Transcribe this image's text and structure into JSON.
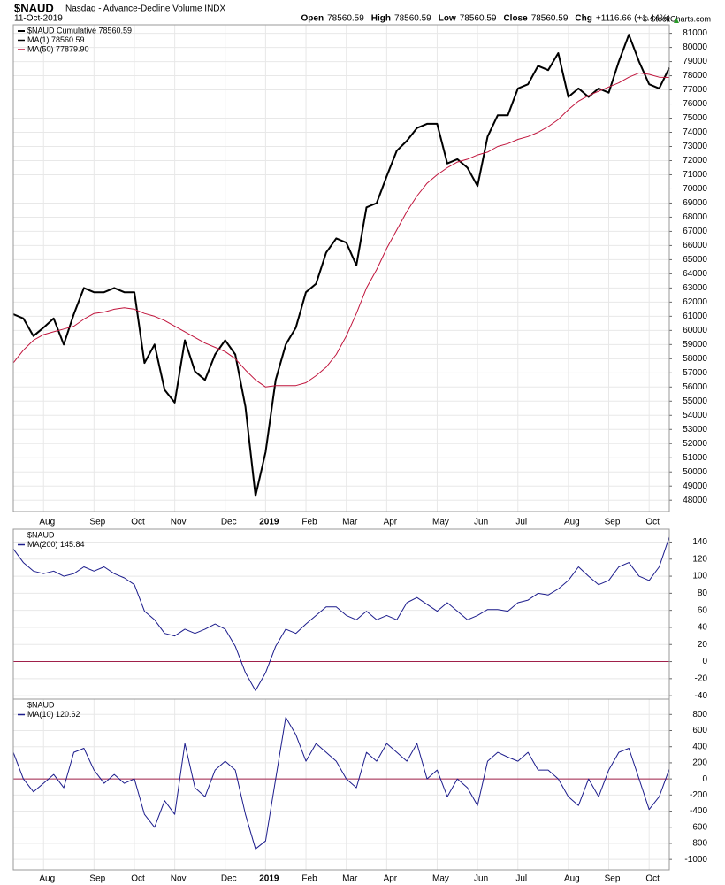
{
  "header": {
    "symbol": "$NAUD",
    "name": "Nasdaq - Advance-Decline Volume INDX",
    "date": "11-Oct-2019",
    "quote": [
      {
        "label": "Open",
        "value": "78560.59"
      },
      {
        "label": "High",
        "value": "78560.59"
      },
      {
        "label": "Low",
        "value": "78560.59"
      },
      {
        "label": "Close",
        "value": "78560.59"
      },
      {
        "label": "Chg",
        "value": "+1116.66 (+1.44%)"
      }
    ],
    "credit": "© StockCharts.com"
  },
  "chart_data": [
    {
      "type": "line",
      "legend_title": "$NAUD Cumulative 78560.59",
      "categories": [
        null,
        null,
        null,
        "Aug",
        null,
        null,
        null,
        null,
        "Sep",
        null,
        null,
        null,
        "Oct",
        null,
        null,
        null,
        "Nov",
        null,
        null,
        null,
        null,
        "Dec",
        null,
        null,
        null,
        "2019",
        null,
        null,
        null,
        "Feb",
        null,
        null,
        null,
        "Mar",
        null,
        null,
        null,
        "Apr",
        null,
        null,
        null,
        null,
        "May",
        null,
        null,
        null,
        "Jun",
        null,
        null,
        null,
        "Jul",
        null,
        null,
        null,
        null,
        "Aug",
        null,
        null,
        null,
        "Sep",
        null,
        null,
        null,
        "Oct",
        null,
        null
      ],
      "series": [
        {
          "name": "MA(1) 78560.59",
          "color": "#000000",
          "width": 2,
          "values": [
            61150,
            60850,
            59600,
            60200,
            60850,
            59000,
            61150,
            63000,
            62700,
            62700,
            63000,
            62700,
            62700,
            57700,
            59000,
            55800,
            54900,
            59300,
            57100,
            56500,
            58300,
            59300,
            58300,
            54600,
            48300,
            51400,
            56500,
            59000,
            60200,
            62700,
            63300,
            65500,
            66500,
            66200,
            64600,
            68700,
            69000,
            70900,
            72700,
            73400,
            74300,
            74600,
            74600,
            71800,
            72100,
            71500,
            70200,
            73700,
            75200,
            75200,
            77100,
            77400,
            78700,
            78400,
            79600,
            76500,
            77100,
            76500,
            77100,
            76800,
            79000,
            80900,
            79000,
            77400,
            77100,
            78560.59
          ]
        },
        {
          "name": "MA(50) 77879.90",
          "color": "#c0143c",
          "width": 1,
          "values": [
            57700,
            58600,
            59300,
            59700,
            59900,
            60100,
            60300,
            60800,
            61200,
            61300,
            61500,
            61600,
            61500,
            61200,
            61000,
            60700,
            60300,
            59900,
            59500,
            59100,
            58800,
            58500,
            58000,
            57200,
            56500,
            56000,
            56100,
            56100,
            56100,
            56300,
            56800,
            57400,
            58300,
            59600,
            61200,
            63000,
            64300,
            65800,
            67100,
            68400,
            69500,
            70400,
            71000,
            71500,
            71900,
            72100,
            72400,
            72600,
            73000,
            73200,
            73500,
            73700,
            74000,
            74400,
            74900,
            75600,
            76200,
            76600,
            76900,
            77200,
            77500,
            77900,
            78200,
            78100,
            77900,
            77879.9
          ]
        }
      ],
      "ylim": [
        47200,
        81600
      ],
      "yticks": [
        48000,
        49000,
        50000,
        51000,
        52000,
        53000,
        54000,
        55000,
        56000,
        57000,
        58000,
        59000,
        60000,
        61000,
        62000,
        63000,
        64000,
        65000,
        66000,
        67000,
        68000,
        69000,
        70000,
        71000,
        72000,
        73000,
        74000,
        75000,
        76000,
        77000,
        78000,
        79000,
        80000,
        81000
      ],
      "grid": true
    },
    {
      "type": "line",
      "legend_title": "$NAUD",
      "series": [
        {
          "name": "MA(200) 145.84",
          "color": "#1c1c8c",
          "width": 1,
          "values": [
            132,
            116,
            106,
            103,
            106,
            100,
            103,
            111,
            106,
            111,
            103,
            98,
            90,
            59,
            49,
            33,
            30,
            38,
            33,
            38,
            44,
            38,
            18,
            -13,
            -34,
            -13,
            18,
            38,
            33,
            44,
            54,
            64,
            64,
            54,
            49,
            59,
            49,
            54,
            49,
            69,
            75,
            67,
            59,
            69,
            59,
            49,
            54,
            61,
            61,
            59,
            69,
            72,
            80,
            78,
            85,
            95,
            111,
            100,
            90,
            95,
            111,
            116,
            100,
            95,
            111,
            145.84
          ]
        }
      ],
      "reference_line": 0,
      "reference_color": "#a0204a",
      "ylim": [
        -44,
        155
      ],
      "yticks": [
        -40,
        -20,
        0,
        20,
        40,
        60,
        80,
        100,
        120,
        140
      ],
      "grid": true
    },
    {
      "type": "line",
      "legend_title": "$NAUD",
      "categories": [
        null,
        null,
        null,
        "Aug",
        null,
        null,
        null,
        null,
        "Sep",
        null,
        null,
        null,
        "Oct",
        null,
        null,
        null,
        "Nov",
        null,
        null,
        null,
        null,
        "Dec",
        null,
        null,
        null,
        "2019",
        null,
        null,
        null,
        "Feb",
        null,
        null,
        null,
        "Mar",
        null,
        null,
        null,
        "Apr",
        null,
        null,
        null,
        null,
        "May",
        null,
        null,
        null,
        "Jun",
        null,
        null,
        null,
        "Jul",
        null,
        null,
        null,
        null,
        "Aug",
        null,
        null,
        null,
        "Sep",
        null,
        null,
        null,
        "Oct",
        null,
        null
      ],
      "series": [
        {
          "name": "MA(10) 120.62",
          "color": "#1c1c8c",
          "width": 1,
          "values": [
            330,
            0,
            -160,
            -55,
            55,
            -110,
            330,
            380,
            110,
            -55,
            55,
            -55,
            0,
            -440,
            -600,
            -270,
            -440,
            440,
            -110,
            -220,
            110,
            220,
            110,
            -440,
            -870,
            -770,
            0,
            765,
            550,
            220,
            440,
            330,
            220,
            0,
            -110,
            330,
            220,
            440,
            330,
            220,
            440,
            0,
            110,
            -220,
            0,
            -110,
            -330,
            220,
            330,
            270,
            220,
            330,
            110,
            110,
            0,
            -220,
            -330,
            0,
            -220,
            110,
            330,
            380,
            0,
            -380,
            -220,
            120.62
          ]
        }
      ],
      "reference_line": 0,
      "reference_color": "#a0204a",
      "ylim": [
        -1130,
        990
      ],
      "yticks": [
        -1000,
        -800,
        -600,
        -400,
        -200,
        0,
        200,
        400,
        600,
        800
      ],
      "grid": true
    }
  ]
}
